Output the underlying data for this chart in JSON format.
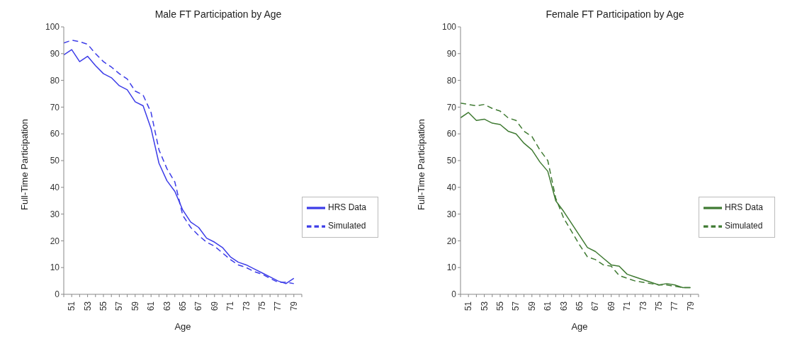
{
  "chart_data": [
    {
      "type": "line",
      "title": "Male FT Participation by Age",
      "xlabel": "Age",
      "ylabel": "Full-Time Participation",
      "x": [
        50,
        51,
        52,
        53,
        54,
        55,
        56,
        57,
        58,
        59,
        60,
        61,
        62,
        63,
        64,
        65,
        66,
        67,
        68,
        69,
        70,
        71,
        72,
        73,
        74,
        75,
        76,
        77,
        78,
        79
      ],
      "xlim": [
        50,
        80
      ],
      "xticks": [
        {
          "value": 50,
          "label": null
        },
        51,
        {
          "value": 52,
          "label": null
        },
        53,
        {
          "value": 54,
          "label": null
        },
        55,
        {
          "value": 56,
          "label": null
        },
        57,
        {
          "value": 58,
          "label": null
        },
        59,
        {
          "value": 60,
          "label": null
        },
        61,
        {
          "value": 62,
          "label": null
        },
        63,
        {
          "value": 64,
          "label": null
        },
        65,
        {
          "value": 66,
          "label": null
        },
        67,
        {
          "value": 68,
          "label": null
        },
        69,
        {
          "value": 70,
          "label": null
        },
        71,
        {
          "value": 72,
          "label": null
        },
        73,
        {
          "value": 74,
          "label": null
        },
        75,
        {
          "value": 76,
          "label": null
        },
        77,
        {
          "value": 78,
          "label": null
        },
        79,
        {
          "value": 80,
          "label": null
        }
      ],
      "ylim": [
        0,
        100
      ],
      "yticks": [
        0,
        10,
        20,
        30,
        40,
        50,
        60,
        70,
        80,
        90,
        100
      ],
      "grid": false,
      "legend": "right",
      "marker": "none",
      "series": [
        {
          "name": "Simulated",
          "color": "#3c3ce8",
          "line_style": "dashed",
          "values": [
            94,
            95,
            94.5,
            93.5,
            90,
            87,
            85,
            82.5,
            80.5,
            76,
            74.5,
            68,
            54,
            47,
            42,
            29.5,
            25,
            22,
            19.5,
            18,
            15.5,
            13,
            11,
            10,
            8.5,
            7.5,
            6,
            4.5,
            4.5,
            4
          ]
        },
        {
          "name": "HRS Data",
          "color": "#3c3ce8",
          "line_style": "solid",
          "values": [
            89.5,
            91.5,
            87,
            89,
            85.5,
            82.5,
            81,
            78,
            76.5,
            72,
            70.5,
            62,
            49,
            42.5,
            38.5,
            31.5,
            27,
            25,
            21,
            19.5,
            17.5,
            14,
            12,
            11,
            9.5,
            8,
            6.5,
            5,
            4,
            6
          ]
        }
      ]
    },
    {
      "type": "line",
      "title": "Female FT Participation by Age",
      "xlabel": "Age",
      "ylabel": "Full-Time Participation",
      "x": [
        50,
        51,
        52,
        53,
        54,
        55,
        56,
        57,
        58,
        59,
        60,
        61,
        62,
        63,
        64,
        65,
        66,
        67,
        68,
        69,
        70,
        71,
        72,
        73,
        74,
        75,
        76,
        77,
        78,
        79
      ],
      "xlim": [
        50,
        80
      ],
      "xticks": [
        {
          "value": 50,
          "label": null
        },
        51,
        {
          "value": 52,
          "label": null
        },
        53,
        {
          "value": 54,
          "label": null
        },
        55,
        {
          "value": 56,
          "label": null
        },
        57,
        {
          "value": 58,
          "label": null
        },
        59,
        {
          "value": 60,
          "label": null
        },
        61,
        {
          "value": 62,
          "label": null
        },
        63,
        {
          "value": 64,
          "label": null
        },
        65,
        {
          "value": 66,
          "label": null
        },
        67,
        {
          "value": 68,
          "label": null
        },
        69,
        {
          "value": 70,
          "label": null
        },
        71,
        {
          "value": 72,
          "label": null
        },
        73,
        {
          "value": 74,
          "label": null
        },
        75,
        {
          "value": 76,
          "label": null
        },
        77,
        {
          "value": 78,
          "label": null
        },
        79,
        {
          "value": 80,
          "label": null
        }
      ],
      "ylim": [
        0,
        100
      ],
      "yticks": [
        0,
        10,
        20,
        30,
        40,
        50,
        60,
        70,
        80,
        90,
        100
      ],
      "grid": false,
      "legend": "right",
      "marker": "none",
      "series": [
        {
          "name": "Simulated",
          "color": "#3f7a32",
          "line_style": "dashed",
          "values": [
            71.5,
            71,
            70.5,
            71,
            69.5,
            68.5,
            66,
            65,
            61,
            59,
            54,
            50,
            36,
            28.5,
            23.5,
            18.5,
            14,
            13,
            11,
            10.5,
            7,
            6,
            5,
            4.5,
            4,
            3.5,
            3.5,
            3,
            2.5,
            2.5
          ]
        },
        {
          "name": "HRS Data",
          "color": "#3f7a32",
          "line_style": "solid",
          "values": [
            66,
            68,
            65,
            65.5,
            64,
            63.5,
            61,
            60,
            56.5,
            54,
            49.5,
            46,
            35,
            31,
            26.5,
            22,
            17.5,
            16,
            13.5,
            11,
            10.5,
            7.5,
            6.5,
            5.5,
            4.5,
            3.5,
            4,
            3.5,
            2.5,
            2.5
          ]
        }
      ]
    }
  ]
}
